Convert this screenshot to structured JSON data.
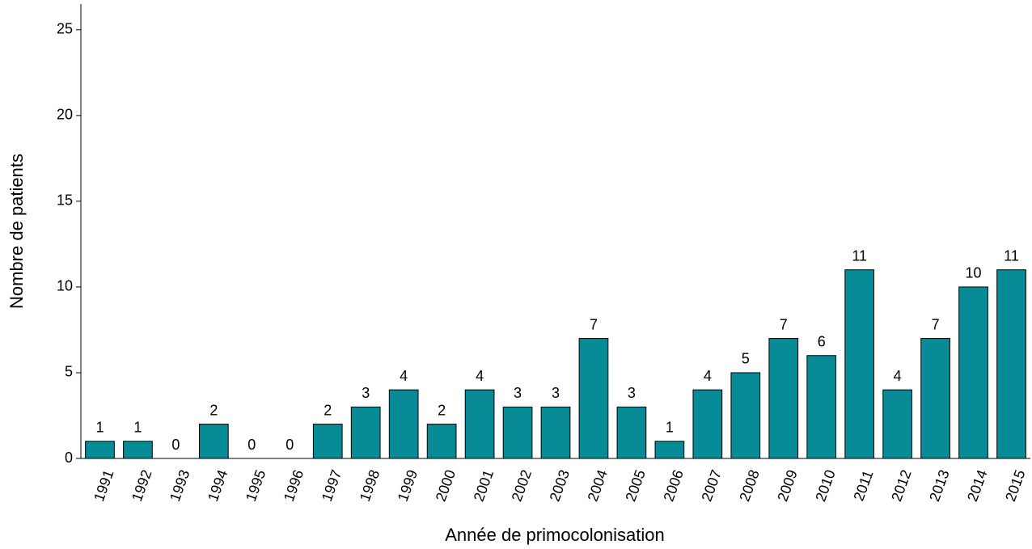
{
  "chart_data": {
    "type": "bar",
    "x_label": "Année de primocolonisation",
    "y_label": "Nombre de patients",
    "categories": [
      "1991",
      "1992",
      "1993",
      "1994",
      "1995",
      "1996",
      "1997",
      "1998",
      "1999",
      "2000",
      "2001",
      "2002",
      "2003",
      "2004",
      "2005",
      "2006",
      "2007",
      "2008",
      "2009",
      "2010",
      "2011",
      "2012",
      "2013",
      "2014",
      "2015"
    ],
    "values": [
      1,
      1,
      0,
      2,
      0,
      0,
      2,
      3,
      4,
      2,
      4,
      3,
      3,
      7,
      3,
      1,
      4,
      5,
      7,
      6,
      11,
      4,
      7,
      10,
      11
    ],
    "color": "#078b96",
    "ylim": [
      0,
      26.5
    ],
    "yticks": [
      0,
      5,
      10,
      15,
      20,
      25
    ],
    "grid": false
  }
}
